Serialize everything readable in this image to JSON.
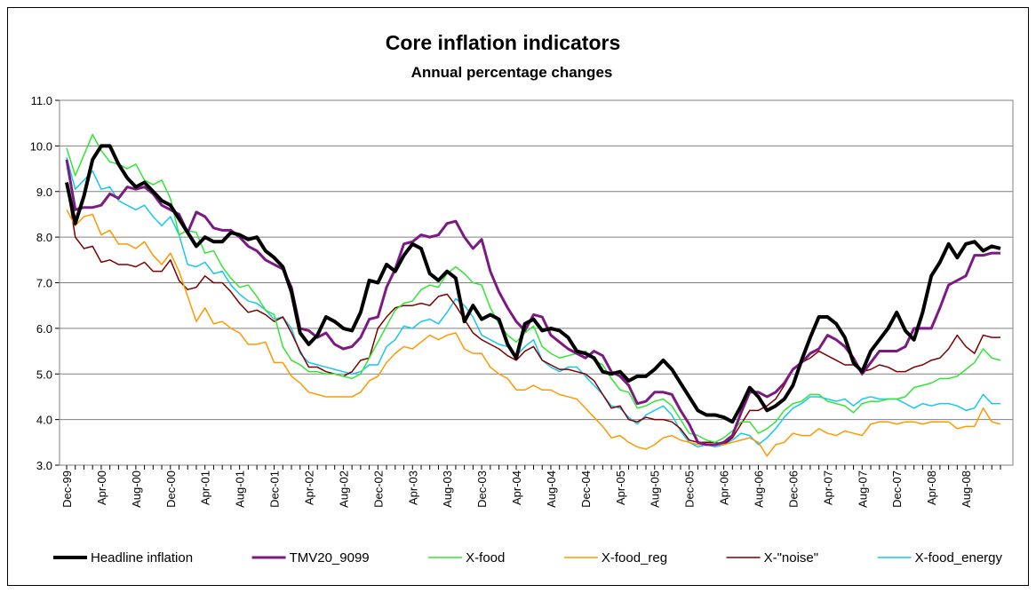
{
  "chart_data": {
    "type": "line",
    "title": "Core inflation indicators",
    "subtitle": "Annual percentage changes",
    "categories": [
      "Dec-99",
      null,
      null,
      null,
      "Apr-00",
      null,
      null,
      null,
      "Aug-00",
      null,
      null,
      null,
      "Dec-00",
      null,
      null,
      null,
      "Apr-01",
      null,
      null,
      null,
      "Aug-01",
      null,
      null,
      null,
      "Dec-01",
      null,
      null,
      null,
      "Apr-02",
      null,
      null,
      null,
      "Aug-02",
      null,
      null,
      null,
      "Dec-02",
      null,
      null,
      null,
      "Apr-03",
      null,
      null,
      null,
      "Aug-03",
      null,
      null,
      null,
      "Dec-03",
      null,
      null,
      null,
      "Apr-04",
      null,
      null,
      null,
      "Aug-04",
      null,
      null,
      null,
      "Dec-04",
      null,
      null,
      null,
      "Apr-05",
      null,
      null,
      null,
      "Aug-05",
      null,
      null,
      null,
      "Dec-05",
      null,
      null,
      null,
      "Apr-06",
      null,
      null,
      null,
      "Aug-06",
      null,
      null,
      null,
      "Dec-06",
      null,
      null,
      null,
      "Apr-07",
      null,
      null,
      null,
      "Aug-07",
      null,
      null,
      null,
      "Dec-07",
      null,
      null,
      null,
      "Apr-08",
      null,
      null,
      null,
      "Aug-08",
      null,
      null,
      null,
      null
    ],
    "ylim": [
      3,
      11
    ],
    "yticks": [
      {
        "value": 3,
        "label": "3.0"
      },
      {
        "value": 4,
        "label": "4.0"
      },
      {
        "value": 5,
        "label": "5.0"
      },
      {
        "value": 6,
        "label": "6.0"
      },
      {
        "value": 7,
        "label": "7.0"
      },
      {
        "value": 8,
        "label": "8.0"
      },
      {
        "value": 9,
        "label": "9.0"
      },
      {
        "value": 10,
        "label": "10.0"
      },
      {
        "value": 11,
        "label": "11.0"
      }
    ],
    "grid": true,
    "legend": "bottom",
    "series": [
      {
        "name": "Headline inflation",
        "color": "#000000",
        "values": [
          9.2,
          8.3,
          8.9,
          9.7,
          10.0,
          10.0,
          9.6,
          9.3,
          9.1,
          9.2,
          9.0,
          8.8,
          8.7,
          8.4,
          8.1,
          7.8,
          8.0,
          7.9,
          7.9,
          8.1,
          8.05,
          7.95,
          8.0,
          7.7,
          7.55,
          7.35,
          6.8,
          5.9,
          5.65,
          5.85,
          6.25,
          6.15,
          6.0,
          5.95,
          6.35,
          7.05,
          7.0,
          7.4,
          7.25,
          7.6,
          7.85,
          7.75,
          7.2,
          7.05,
          7.25,
          7.1,
          6.15,
          6.5,
          6.2,
          6.3,
          6.2,
          5.65,
          5.35,
          6.1,
          6.2,
          5.95,
          6.0,
          5.95,
          5.8,
          5.5,
          5.45,
          5.35,
          5.05,
          5.0,
          5.05,
          4.85,
          4.95,
          4.95,
          5.1,
          5.3,
          5.1,
          4.8,
          4.5,
          4.2,
          4.1,
          4.1,
          4.05,
          3.95,
          4.3,
          4.7,
          4.5,
          4.2,
          4.3,
          4.45,
          4.75,
          5.3,
          5.8,
          6.25,
          6.25,
          6.1,
          5.8,
          5.25,
          5.05,
          5.5,
          5.75,
          6.0,
          6.35,
          5.95,
          5.75,
          6.35,
          7.15,
          7.45,
          7.85,
          7.55,
          7.85,
          7.9,
          7.7,
          7.8,
          7.75
        ]
      },
      {
        "name": "TMV20_9099",
        "color": "#7b1a82",
        "values": [
          9.7,
          8.6,
          8.65,
          8.65,
          8.7,
          8.95,
          8.85,
          9.1,
          9.05,
          9.1,
          8.95,
          8.7,
          8.6,
          8.5,
          8.1,
          8.55,
          8.45,
          8.2,
          8.15,
          8.15,
          8.0,
          7.8,
          7.7,
          7.5,
          7.4,
          7.3,
          6.9,
          6.0,
          5.95,
          5.8,
          5.9,
          5.65,
          5.55,
          5.6,
          5.8,
          6.2,
          6.25,
          6.9,
          7.3,
          7.85,
          7.9,
          8.05,
          8.0,
          8.05,
          8.3,
          8.35,
          8.0,
          7.75,
          7.95,
          7.25,
          6.8,
          6.45,
          6.15,
          5.95,
          6.3,
          6.25,
          5.85,
          5.7,
          5.55,
          5.45,
          5.35,
          5.5,
          5.4,
          5.05,
          4.95,
          4.75,
          4.35,
          4.4,
          4.6,
          4.6,
          4.55,
          4.2,
          3.9,
          3.5,
          3.45,
          3.45,
          3.5,
          3.65,
          4.15,
          4.6,
          4.6,
          4.5,
          4.6,
          4.8,
          5.1,
          5.25,
          5.45,
          5.55,
          5.85,
          5.75,
          5.6,
          5.35,
          5.0,
          5.25,
          5.5,
          5.5,
          5.5,
          5.6,
          6.0,
          6.0,
          6.0,
          6.45,
          6.95,
          7.05,
          7.15,
          7.6,
          7.6,
          7.65,
          7.65
        ]
      },
      {
        "name": "X-food",
        "color": "#33e633",
        "values": [
          9.95,
          9.35,
          9.8,
          10.25,
          9.9,
          9.65,
          9.6,
          9.5,
          9.6,
          9.25,
          9.15,
          9.25,
          8.85,
          8.05,
          8.15,
          8.1,
          7.65,
          7.7,
          7.35,
          7.1,
          6.9,
          6.95,
          6.7,
          6.4,
          6.3,
          5.6,
          5.3,
          5.2,
          5.05,
          5.05,
          5.0,
          5.0,
          4.95,
          4.9,
          5.0,
          5.35,
          5.7,
          6.05,
          6.4,
          6.55,
          6.6,
          6.85,
          6.95,
          6.9,
          7.2,
          7.35,
          7.2,
          7.0,
          6.95,
          6.45,
          6.1,
          5.85,
          5.7,
          5.9,
          6.05,
          5.6,
          5.45,
          5.35,
          5.4,
          5.45,
          5.5,
          5.3,
          5.2,
          4.9,
          4.65,
          4.6,
          4.25,
          4.3,
          4.4,
          4.45,
          4.3,
          4.0,
          3.7,
          3.65,
          3.55,
          3.5,
          3.6,
          3.75,
          3.95,
          3.95,
          3.7,
          3.8,
          3.95,
          4.2,
          4.35,
          4.4,
          4.55,
          4.55,
          4.4,
          4.35,
          4.3,
          4.15,
          4.35,
          4.4,
          4.4,
          4.45,
          4.45,
          4.5,
          4.7,
          4.75,
          4.8,
          4.9,
          4.9,
          4.95,
          5.1,
          5.25,
          5.55,
          5.35,
          5.3
        ]
      },
      {
        "name": "X-food_reg",
        "color": "#ff9900",
        "values": [
          8.6,
          8.25,
          8.45,
          8.5,
          8.05,
          8.15,
          7.85,
          7.85,
          7.75,
          7.9,
          7.6,
          7.4,
          7.65,
          7.25,
          6.7,
          6.15,
          6.45,
          6.1,
          6.15,
          6.0,
          5.9,
          5.65,
          5.65,
          5.7,
          5.25,
          5.25,
          4.95,
          4.8,
          4.6,
          4.55,
          4.5,
          4.5,
          4.5,
          4.5,
          4.6,
          4.85,
          4.95,
          5.25,
          5.45,
          5.6,
          5.55,
          5.7,
          5.85,
          5.75,
          5.85,
          5.9,
          5.55,
          5.45,
          5.45,
          5.15,
          5.0,
          4.9,
          4.65,
          4.65,
          4.75,
          4.65,
          4.65,
          4.55,
          4.5,
          4.45,
          4.25,
          4.05,
          3.85,
          3.6,
          3.65,
          3.5,
          3.4,
          3.35,
          3.45,
          3.6,
          3.65,
          3.55,
          3.5,
          3.45,
          3.45,
          3.45,
          3.45,
          3.5,
          3.55,
          3.6,
          3.5,
          3.2,
          3.45,
          3.5,
          3.7,
          3.65,
          3.65,
          3.8,
          3.7,
          3.65,
          3.75,
          3.7,
          3.65,
          3.9,
          3.95,
          3.95,
          3.9,
          3.95,
          3.95,
          3.9,
          3.95,
          3.95,
          3.95,
          3.8,
          3.85,
          3.85,
          4.25,
          3.95,
          3.9
        ]
      },
      {
        "name": "X-\"noise\"",
        "color": "#7f0000",
        "values": [
          9.2,
          8.0,
          7.75,
          7.8,
          7.45,
          7.5,
          7.4,
          7.4,
          7.35,
          7.45,
          7.25,
          7.25,
          7.5,
          7.05,
          6.85,
          6.9,
          7.15,
          7.0,
          7.0,
          6.8,
          6.55,
          6.35,
          6.4,
          6.3,
          6.15,
          6.25,
          5.9,
          5.5,
          5.15,
          5.15,
          5.05,
          5.0,
          4.95,
          5.05,
          5.3,
          5.35,
          6.0,
          6.25,
          6.45,
          6.5,
          6.5,
          6.55,
          6.5,
          6.7,
          6.75,
          6.5,
          6.2,
          5.9,
          5.75,
          5.65,
          5.55,
          5.4,
          5.3,
          5.5,
          5.6,
          5.3,
          5.2,
          5.1,
          5.1,
          5.05,
          5.0,
          4.85,
          4.55,
          4.25,
          4.3,
          4.0,
          3.95,
          4.05,
          4.0,
          4.0,
          3.95,
          3.8,
          3.55,
          3.5,
          3.5,
          3.5,
          3.45,
          3.6,
          3.9,
          4.2,
          4.2,
          4.3,
          4.45,
          4.75,
          5.1,
          5.25,
          5.35,
          5.5,
          5.4,
          5.3,
          5.2,
          5.2,
          5.05,
          5.1,
          5.2,
          5.15,
          5.05,
          5.05,
          5.15,
          5.2,
          5.3,
          5.35,
          5.55,
          5.85,
          5.6,
          5.45,
          5.85,
          5.8,
          5.8
        ]
      },
      {
        "name": "X-food_energy",
        "color": "#18c6f0",
        "values": [
          9.75,
          9.05,
          9.25,
          9.45,
          9.05,
          9.1,
          8.8,
          8.7,
          8.6,
          8.7,
          8.45,
          8.25,
          8.45,
          8.05,
          7.4,
          7.35,
          7.45,
          7.2,
          7.25,
          6.95,
          6.75,
          6.6,
          6.55,
          6.4,
          6.2,
          6.25,
          6.0,
          5.45,
          5.25,
          5.2,
          5.15,
          5.1,
          5.05,
          5.0,
          5.05,
          5.2,
          5.2,
          5.6,
          5.75,
          6.05,
          6.0,
          6.15,
          6.2,
          6.1,
          6.35,
          6.65,
          6.5,
          6.25,
          5.85,
          5.75,
          5.65,
          5.6,
          5.4,
          5.6,
          5.75,
          5.3,
          5.15,
          5.05,
          5.15,
          5.15,
          4.95,
          4.75,
          4.55,
          4.3,
          4.25,
          4.05,
          3.9,
          4.1,
          4.2,
          4.3,
          4.1,
          3.75,
          3.5,
          3.4,
          3.45,
          3.4,
          3.45,
          3.55,
          3.7,
          3.65,
          3.45,
          3.6,
          3.8,
          4.05,
          4.25,
          4.35,
          4.5,
          4.5,
          4.45,
          4.4,
          4.45,
          4.3,
          4.45,
          4.5,
          4.45,
          4.45,
          4.45,
          4.35,
          4.25,
          4.35,
          4.3,
          4.35,
          4.35,
          4.3,
          4.2,
          4.25,
          4.55,
          4.35,
          4.35
        ]
      }
    ]
  }
}
